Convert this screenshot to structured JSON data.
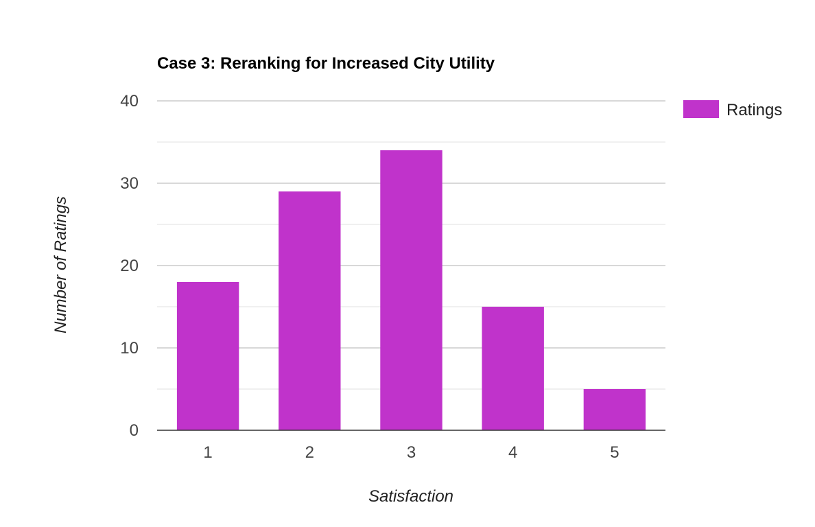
{
  "chart_data": {
    "type": "bar",
    "title": "Case 3: Reranking for Increased City Utility",
    "xlabel": "Satisfaction",
    "ylabel": "Number of Ratings",
    "categories": [
      "1",
      "2",
      "3",
      "4",
      "5"
    ],
    "series": [
      {
        "name": "Ratings",
        "values": [
          18,
          29,
          34,
          15,
          5
        ]
      }
    ],
    "ylim": [
      0,
      40
    ],
    "yticks": [
      0,
      10,
      20,
      30,
      40
    ],
    "minor_gridlines": [
      5,
      15,
      25,
      35
    ],
    "grid": true,
    "legend_position": "right-top",
    "colors": {
      "bar": "#c033cb",
      "major_grid": "#cccccc",
      "minor_grid": "#ebebeb",
      "baseline": "#333333"
    }
  }
}
